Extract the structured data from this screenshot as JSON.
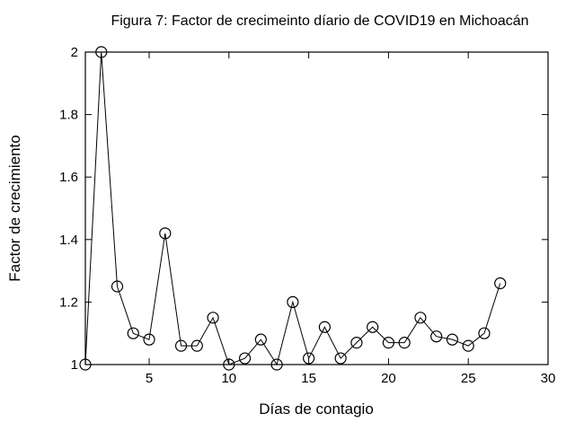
{
  "figure": {
    "background_color": "#ffffff",
    "foreground_color": "#000000"
  },
  "chart_data": {
    "type": "line",
    "title": "Figura 7: Factor de crecimeinto díario de COVID19 en Michoacán",
    "xlabel": "Días de contagio",
    "ylabel": "Factor de crecimiento",
    "legend": null,
    "grid": false,
    "line_color": "#000000",
    "marker": "open-circle",
    "marker_color": "#000000",
    "xlim": [
      1,
      30
    ],
    "ylim": [
      1,
      2
    ],
    "x_ticks": [
      5,
      10,
      15,
      20,
      25,
      30
    ],
    "y_ticks": [
      1,
      1.2,
      1.4,
      1.6,
      1.8,
      2
    ],
    "x": [
      1,
      2,
      3,
      4,
      5,
      6,
      7,
      8,
      9,
      10,
      11,
      12,
      13,
      14,
      15,
      16,
      17,
      18,
      19,
      20,
      21,
      22,
      23,
      24,
      25,
      26,
      27
    ],
    "y": [
      1.0,
      2.0,
      1.25,
      1.1,
      1.08,
      1.42,
      1.06,
      1.06,
      1.15,
      1.0,
      1.02,
      1.08,
      1.0,
      1.2,
      1.02,
      1.12,
      1.02,
      1.07,
      1.12,
      1.07,
      1.07,
      1.15,
      1.09,
      1.08,
      1.06,
      1.1,
      1.26
    ]
  }
}
